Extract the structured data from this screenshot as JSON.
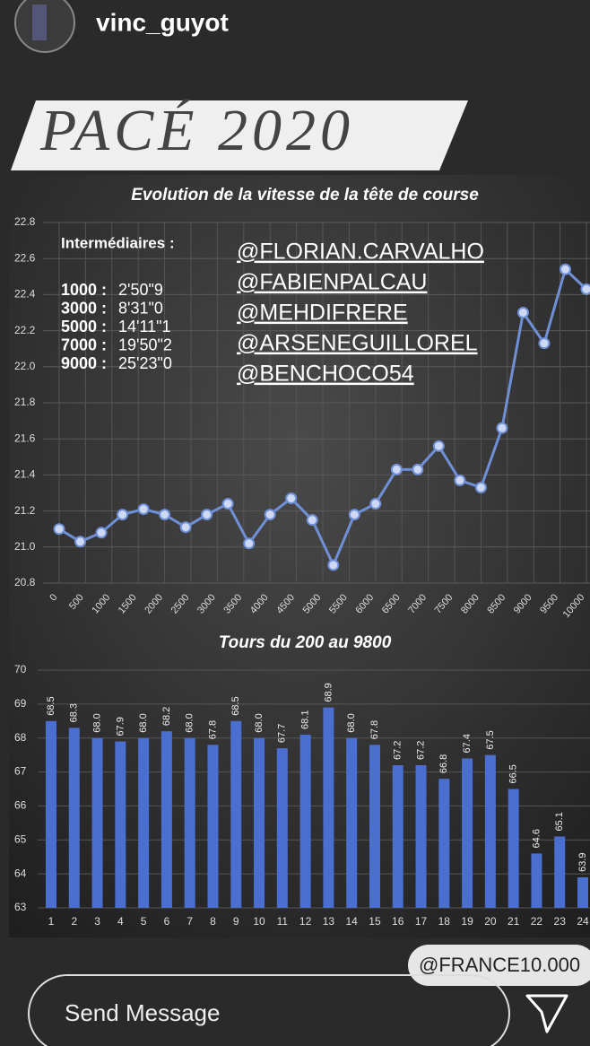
{
  "header": {
    "username": "vinc_guyot"
  },
  "banner": {
    "title": "PACÉ 2020"
  },
  "chart_data": [
    {
      "type": "line",
      "title": "Evolution de la vitesse de la tête de course",
      "x": [
        0,
        400,
        800,
        1200,
        1600,
        2000,
        2400,
        2800,
        3200,
        3600,
        4000,
        4400,
        4800,
        5200,
        5600,
        6000,
        6400,
        6800,
        7200,
        7600,
        8000,
        8400,
        8800,
        9200,
        9600,
        10000
      ],
      "series": [
        {
          "color": "#6f8fd6",
          "values": [
            21.1,
            21.03,
            21.08,
            21.18,
            21.21,
            21.18,
            21.11,
            21.18,
            21.24,
            21.02,
            21.18,
            21.27,
            21.15,
            20.9,
            21.18,
            21.24,
            21.43,
            21.43,
            21.56,
            21.37,
            21.33,
            21.66,
            22.3,
            22.13,
            22.54,
            22.43
          ]
        }
      ],
      "xlim": [
        0,
        10000
      ],
      "xticks": [
        0,
        500,
        1000,
        1500,
        2000,
        2500,
        3000,
        3500,
        4000,
        4500,
        5000,
        5500,
        6000,
        6500,
        7000,
        7500,
        8000,
        8500,
        9000,
        9500,
        10000
      ],
      "ylim": [
        20.8,
        22.8
      ],
      "yticks": [
        20.8,
        {
          "value": 21.0,
          "label": "21.0"
        },
        21.2,
        21.4,
        21.6,
        21.8,
        {
          "value": 22.0,
          "label": "22.0"
        },
        22.2,
        22.4,
        22.6,
        22.8
      ],
      "grid": true,
      "splits_title": "Intermédiaires :",
      "splits": [
        {
          "distance": "1000 :",
          "time": "2'50\"9"
        },
        {
          "distance": "3000 :",
          "time": "8'31\"0"
        },
        {
          "distance": "5000 :",
          "time": "14'11\"1"
        },
        {
          "distance": "7000 :",
          "time": "19'50\"2"
        },
        {
          "distance": "9000 :",
          "time": "25'23\"0"
        }
      ],
      "mentions": [
        "@FLORIAN.CARVALHO",
        "@FABIENPALCAU",
        "@MEHDIFRERE",
        "@ARSENEGUILLOREL",
        "@BENCHOCO54"
      ]
    },
    {
      "type": "bar",
      "title": "Tours du 200 au 9800",
      "categories": [
        "1",
        "2",
        "3",
        "4",
        "5",
        "6",
        "7",
        "8",
        "9",
        "10",
        "11",
        "12",
        "13",
        "14",
        "15",
        "16",
        "17",
        "18",
        "19",
        "20",
        "21",
        "22",
        "23",
        "24"
      ],
      "values": [
        68.5,
        68.3,
        68.0,
        67.9,
        68.0,
        68.2,
        68.0,
        67.8,
        68.5,
        68.0,
        67.7,
        68.1,
        68.9,
        68.0,
        67.8,
        67.2,
        67.2,
        66.8,
        67.4,
        67.5,
        66.5,
        64.6,
        65.1,
        63.9
      ],
      "value_labels": [
        "68.5",
        "68.3",
        "68.0",
        "67.9",
        "68.0",
        "68.2",
        "68.0",
        "67.8",
        "68.5",
        "68.0",
        "67.7",
        "68.1",
        "68.9",
        "68.0",
        "67.8",
        "67.2",
        "67.2",
        "66.8",
        "67.4",
        "67.5",
        "66.5",
        "64.6",
        "65.1",
        "63.9"
      ],
      "color": "#4a6fd0",
      "ylim": [
        63,
        70
      ],
      "yticks": [
        63,
        64,
        65,
        66,
        67,
        68,
        69,
        70
      ],
      "grid": true
    }
  ],
  "footer": {
    "mention": "@FRANCE10.000",
    "message_placeholder": "Send Message"
  }
}
